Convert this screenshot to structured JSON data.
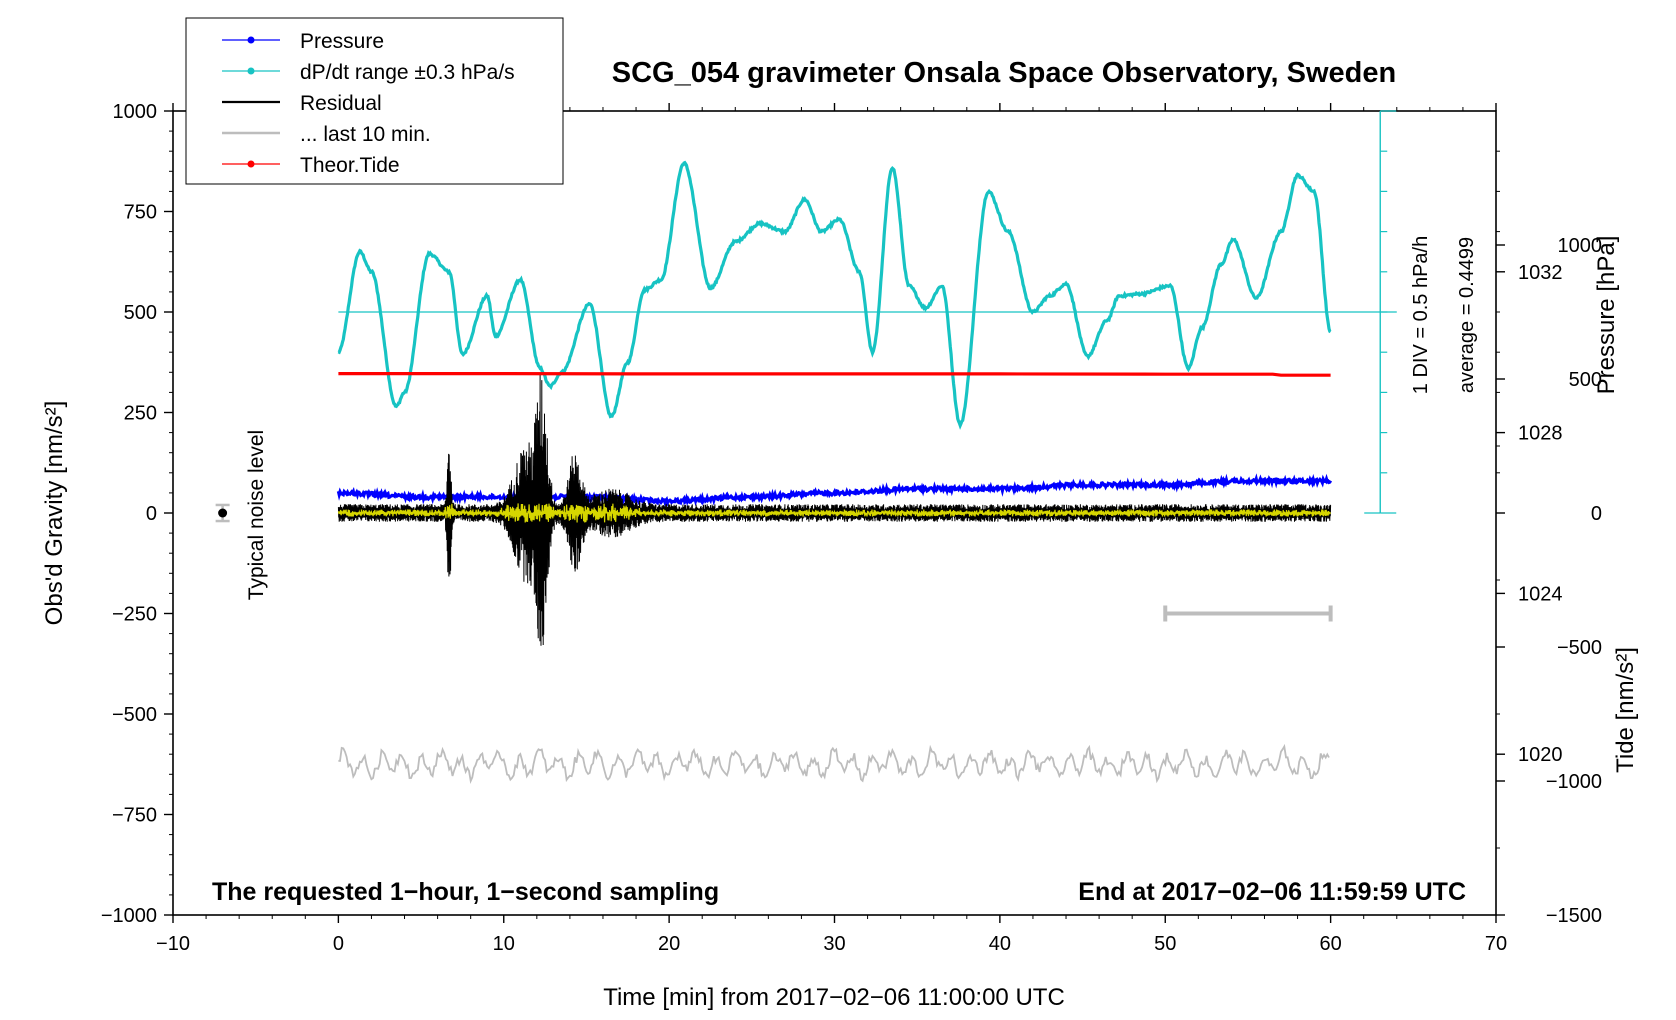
{
  "chart_data": {
    "type": "line",
    "title": "SCG_054 gravimeter Onsala Space Observatory, Sweden",
    "xlabel": "Time [min] from 2017−02−06 11:00:00 UTC",
    "ylabel_left": "Obs'd Gravity [nm/s²]",
    "ylabel_right_top": "Pressure [hPa]",
    "ylabel_right_bottom": "Tide [nm/s²]",
    "xlim": [
      -10,
      70
    ],
    "ylim": [
      -1000,
      1000
    ],
    "x_ticks": [
      -10,
      0,
      10,
      20,
      30,
      40,
      50,
      60,
      70
    ],
    "x_tick_labels": [
      "−10",
      "0",
      "10",
      "20",
      "30",
      "40",
      "50",
      "60",
      "70"
    ],
    "y_ticks": [
      1000,
      750,
      500,
      250,
      0,
      -250,
      -500,
      -750,
      -1000
    ],
    "y_tick_labels": [
      "1000",
      "750",
      "500",
      "250",
      "0",
      "−250",
      "−500",
      "−750",
      "−1000"
    ],
    "pressure_axis": {
      "range": [
        1016,
        1036
      ],
      "ticks": [
        1020,
        1024,
        1028,
        1032
      ],
      "tick_labels": [
        "1020",
        "1024",
        "1028",
        "1032"
      ]
    },
    "tide_axis": {
      "range": [
        -1500,
        1500
      ],
      "ticks": [
        -1500,
        -1000,
        -500,
        0,
        500,
        1000
      ],
      "tick_labels": [
        "−1500",
        "−1000",
        "−500",
        "0",
        "500",
        "1000"
      ]
    },
    "dpdt_scale": {
      "div_label": "1 DIV = 0.5 hPa/h",
      "average_label": "average = 0.4499",
      "center_value": 500,
      "range": [
        0,
        1000
      ]
    },
    "legend": {
      "position": "top-left",
      "entries": [
        {
          "label": "Pressure",
          "color": "#0000ff",
          "marker": true
        },
        {
          "label": "dP/dt range ±0.3 hPa/s",
          "color": "#17c3c3",
          "marker": true
        },
        {
          "label": "Residual",
          "color": "#000000",
          "marker": false
        },
        {
          "label": "... last 10 min.",
          "color": "#bdbdbd",
          "marker": false
        },
        {
          "label": "Theor.Tide",
          "color": "#ff0000",
          "marker": true
        }
      ]
    },
    "noise_label": "Typical noise level",
    "noise_marker": {
      "x": -7,
      "y": 0,
      "err": 20
    },
    "annotations": {
      "bottom_left": "The requested 1−hour, 1−second sampling",
      "bottom_right": "End at 2017−02−06 11:59:59 UTC"
    },
    "last10_bar": {
      "x": [
        50,
        60
      ],
      "y": -250
    },
    "series": [
      {
        "name": "Pressure",
        "color": "#0000ff",
        "axis": "pressure",
        "x": [
          0,
          5,
          10,
          15,
          20,
          25,
          30,
          35,
          40,
          45,
          50,
          55,
          60
        ],
        "values": [
          1026.5,
          1026.4,
          1026.4,
          1026.4,
          1026.3,
          1026.4,
          1026.5,
          1026.6,
          1026.6,
          1026.7,
          1026.7,
          1026.8,
          1026.8
        ]
      },
      {
        "name": "dP/dt",
        "color": "#17c3c3",
        "axis": "left",
        "x": [
          0,
          1.3,
          2,
          3.5,
          4,
          5.5,
          6.7,
          7.5,
          9,
          9.5,
          11,
          12.2,
          12.8,
          13.5,
          15.2,
          16.5,
          17.5,
          18.5,
          19.5,
          20.9,
          22.5,
          24,
          25.5,
          27,
          28.2,
          29.2,
          30.3,
          31.5,
          32.3,
          33.5,
          34.5,
          35.5,
          36.5,
          37.6,
          39.3,
          40.5,
          42,
          43,
          44,
          45.3,
          46.5,
          47.2,
          48.5,
          50.3,
          51.4,
          52.2,
          53.4,
          54.1,
          55.5,
          57,
          58,
          59,
          60
        ],
        "values": [
          400,
          650,
          600,
          265,
          300,
          645,
          600,
          395,
          540,
          440,
          580,
          360,
          315,
          350,
          520,
          240,
          375,
          555,
          580,
          870,
          560,
          675,
          720,
          700,
          780,
          700,
          730,
          600,
          400,
          860,
          565,
          510,
          565,
          220,
          800,
          700,
          500,
          540,
          570,
          390,
          480,
          540,
          545,
          565,
          360,
          460,
          620,
          680,
          535,
          700,
          840,
          800,
          450
        ]
      },
      {
        "name": "Residual",
        "color": "#000000",
        "axis": "left"
      },
      {
        "name": "Residual filtered",
        "color": "#d6d600",
        "axis": "left"
      },
      {
        "name": "... last 10 min.",
        "color": "#bdbdbd",
        "axis": "left"
      },
      {
        "name": "Theor.Tide",
        "color": "#ff0000",
        "axis": "tide",
        "x": [
          0,
          10,
          20,
          30,
          40,
          50,
          56.5,
          57,
          60
        ],
        "values": [
          520,
          520,
          519,
          519,
          519,
          518,
          518,
          514,
          514
        ]
      }
    ]
  }
}
